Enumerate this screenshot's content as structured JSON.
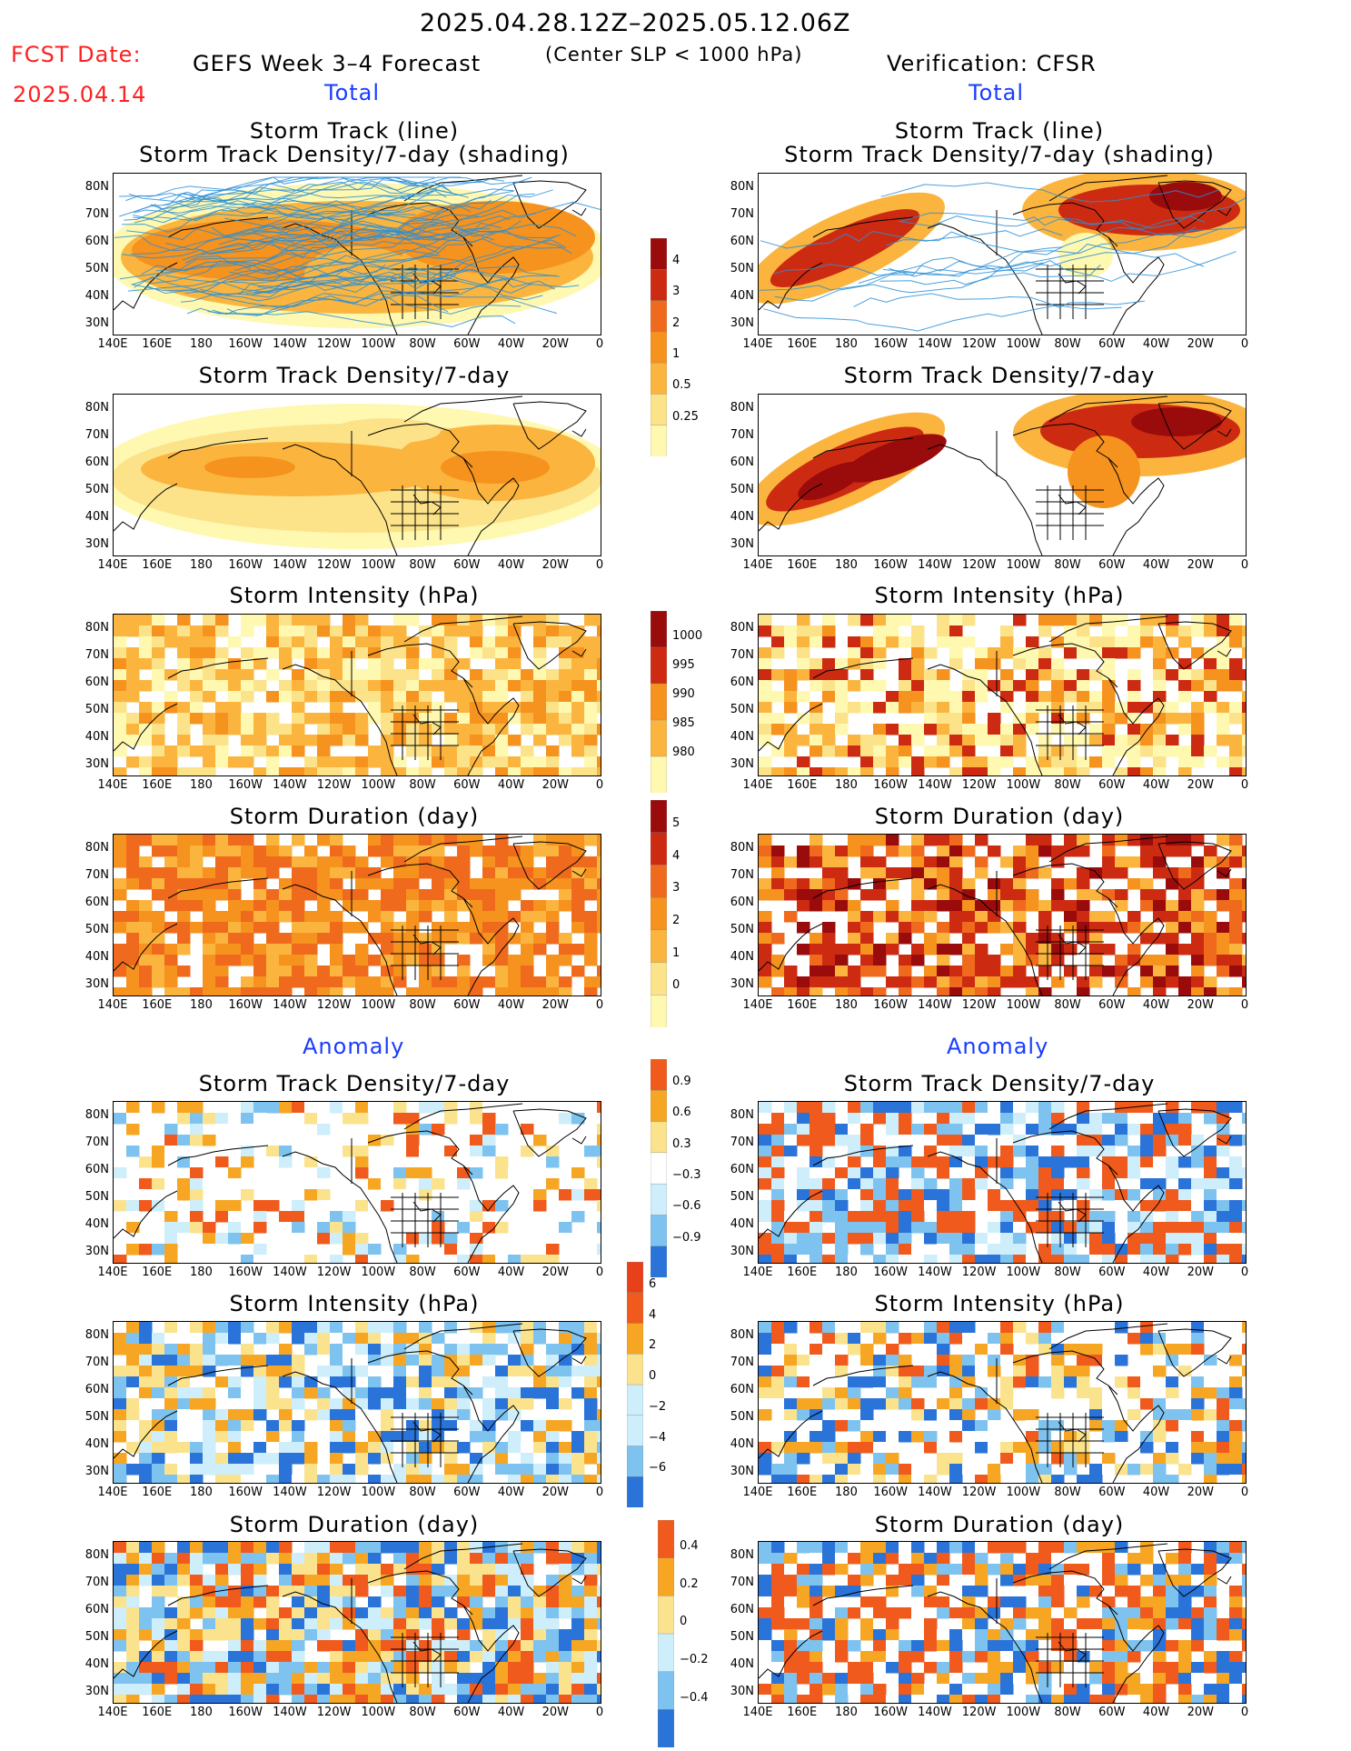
{
  "header": {
    "date_range": "2025.04.28.12Z–2025.05.12.06Z",
    "fcst_label": "FCST Date:",
    "fcst_date": "2025.04.14",
    "left_title": "GEFS Week 3–4 Forecast",
    "criteria": "(Center SLP < 1000 hPa)",
    "right_title": "Verification: CFSR",
    "total_left": "Total",
    "total_right": "Total",
    "anomaly_left": "Anomaly",
    "anomaly_right": "Anomaly"
  },
  "panels": {
    "track_title_1": "Storm Track (line)",
    "track_title_2": "Storm Track Density/7-day (shading)",
    "density": "Storm Track Density/7-day",
    "intensity": "Storm Intensity (hPa)",
    "duration": "Storm Duration (day)"
  },
  "axes": {
    "lat_labels": [
      "80N",
      "70N",
      "60N",
      "50N",
      "40N",
      "30N"
    ],
    "lon_labels": [
      "140E",
      "160E",
      "180",
      "160W",
      "140W",
      "120W",
      "100W",
      "80W",
      "60W",
      "40W",
      "20W",
      "0"
    ]
  },
  "colorbars": {
    "density_total": [
      "4",
      "3",
      "2",
      "1",
      "0.5",
      "0.25"
    ],
    "intensity_total": [
      "1000",
      "995",
      "990",
      "985",
      "980"
    ],
    "duration_total": [
      "5",
      "4",
      "3",
      "2",
      "1",
      "0"
    ],
    "density_anom": [
      "0.9",
      "0.6",
      "0.3",
      "−0.3",
      "−0.6",
      "−0.9"
    ],
    "intensity_anom": [
      "6",
      "4",
      "2",
      "0",
      "−2",
      "−4",
      "−6"
    ],
    "duration_anom": [
      "0.4",
      "0.2",
      "0",
      "−0.2",
      "−0.4"
    ]
  },
  "colors": {
    "total_scale": [
      "#fff8b0",
      "#fce38a",
      "#fbb53f",
      "#f6921e",
      "#ef6a1c",
      "#cc2b12",
      "#9a0b0b"
    ],
    "anom_pos": [
      "#fbe38e",
      "#f6a623",
      "#f05a1c"
    ],
    "anom_neg": [
      "#cdeefa",
      "#7ec3ef",
      "#2a73d8"
    ],
    "track_line": "#2a8fd6",
    "header_red": "#ff2020",
    "header_blue": "#1a3cff"
  }
}
